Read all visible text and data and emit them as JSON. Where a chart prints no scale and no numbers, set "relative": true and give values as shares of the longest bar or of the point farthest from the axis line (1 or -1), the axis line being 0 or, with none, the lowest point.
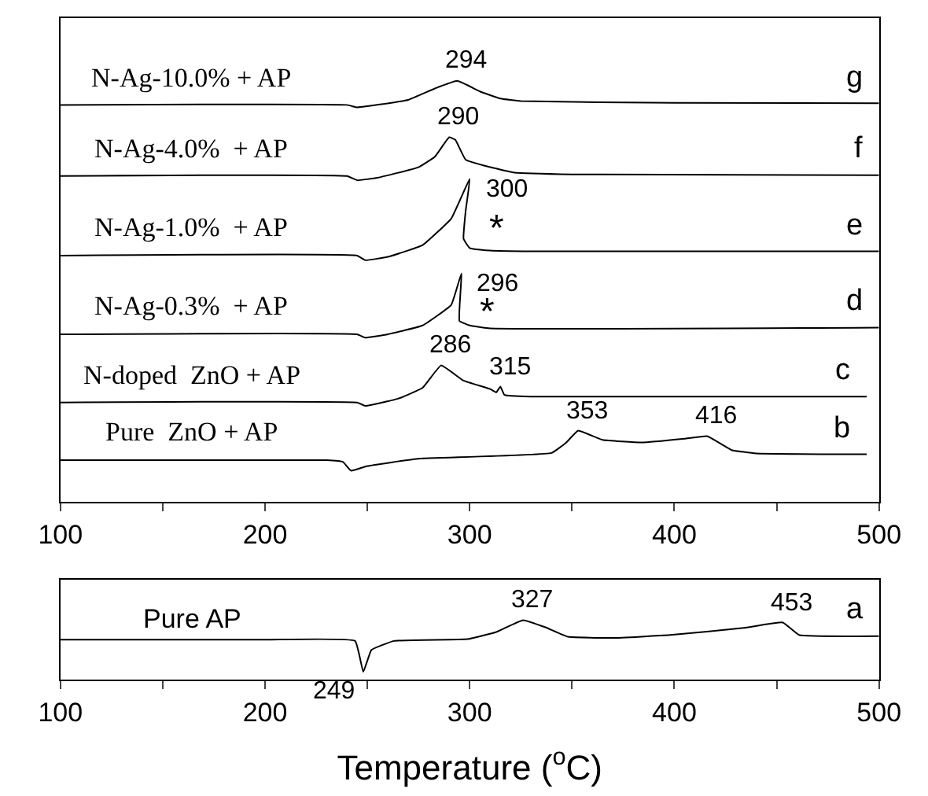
{
  "chart_data": [
    {
      "type": "line",
      "relative": true,
      "tick_labels": "x",
      "marker": "none",
      "line_style": "solid",
      "xlim": [
        100,
        500
      ],
      "xticks": [
        100,
        {
          "value": 150,
          "label": null
        },
        200,
        {
          "value": 250,
          "label": null
        },
        300,
        {
          "value": 350,
          "label": null
        },
        400,
        {
          "value": 450,
          "label": null
        },
        500
      ],
      "series": [
        {
          "name": "N-Ag-10.0% + AP",
          "color": "#000000",
          "x": [
            100,
            240,
            245,
            250,
            270,
            283,
            294,
            305,
            315,
            325,
            400,
            500
          ],
          "values": [
            0.943,
            0.943,
            0.937,
            0.94,
            0.955,
            0.982,
            1.0,
            0.975,
            0.958,
            0.952,
            0.948,
            0.947
          ]
        },
        {
          "name": "N-Ag-4.0%  + AP",
          "color": "#000000",
          "x": [
            100,
            240,
            245,
            255,
            275,
            283,
            290,
            293,
            298,
            310,
            322,
            350,
            500
          ],
          "values": [
            0.774,
            0.774,
            0.764,
            0.77,
            0.795,
            0.82,
            0.866,
            0.86,
            0.813,
            0.795,
            0.782,
            0.778,
            0.776
          ]
        },
        {
          "name": "N-Ag-1.0%  + AP",
          "color": "#000000",
          "x": [
            100,
            245,
            249,
            260,
            277,
            291,
            300,
            298,
            297,
            300,
            310,
            330,
            500
          ],
          "values": [
            0.585,
            0.585,
            0.574,
            0.582,
            0.61,
            0.673,
            0.767,
            0.69,
            0.625,
            0.603,
            0.597,
            0.595,
            0.595
          ]
        },
        {
          "name": "N-Ag-0.3%  + AP",
          "color": "#000000",
          "x": [
            100,
            245,
            249,
            260,
            277,
            291,
            296,
            295,
            300,
            310,
            500
          ],
          "values": [
            0.398,
            0.398,
            0.39,
            0.398,
            0.419,
            0.468,
            0.543,
            0.43,
            0.419,
            0.412,
            0.414
          ]
        },
        {
          "name": "N-doped  ZnO + AP",
          "color": "#000000",
          "x": [
            100,
            245,
            249,
            265,
            277,
            286,
            297,
            310,
            313,
            315,
            317,
            330,
            494
          ],
          "values": [
            0.236,
            0.236,
            0.228,
            0.245,
            0.271,
            0.324,
            0.288,
            0.268,
            0.26,
            0.274,
            0.254,
            0.25,
            0.25
          ]
        },
        {
          "name": "Pure  ZnO + AP",
          "color": "#000000",
          "x": [
            100,
            230,
            238,
            242,
            250,
            274,
            340,
            347,
            353,
            365,
            384,
            405,
            416,
            428,
            440,
            494
          ],
          "values": [
            0.099,
            0.099,
            0.095,
            0.074,
            0.085,
            0.102,
            0.116,
            0.14,
            0.169,
            0.147,
            0.141,
            0.15,
            0.156,
            0.123,
            0.115,
            0.113
          ]
        }
      ],
      "annotations": [
        {
          "text": "294",
          "x": 294,
          "y": 1.0
        },
        {
          "text": "290",
          "x": 290,
          "y": 0.866
        },
        {
          "text": "300",
          "x": 300,
          "y": 0.767
        },
        {
          "text": "296",
          "x": 296,
          "y": 0.543
        },
        {
          "text": "286",
          "x": 286,
          "y": 0.324
        },
        {
          "text": "315",
          "x": 315,
          "y": 0.274
        },
        {
          "text": "353",
          "x": 353,
          "y": 0.169
        },
        {
          "text": "416",
          "x": 416,
          "y": 0.156
        },
        "*",
        "*",
        {
          "text": "g",
          "x": 500,
          "y": 0.947
        },
        {
          "text": "f",
          "x": 500,
          "y": 0.776
        },
        {
          "text": "e",
          "x": 500,
          "y": 0.595
        },
        {
          "text": "d",
          "x": 500,
          "y": 0.414
        },
        {
          "text": "c",
          "x": 494,
          "y": 0.25
        },
        {
          "text": "b",
          "x": 494,
          "y": 0.113
        }
      ]
    },
    {
      "type": "line",
      "relative": true,
      "marker": "none",
      "line_style": "solid",
      "xlabel": "Temperature ($^{o}$C)",
      "xlim": [
        100,
        500
      ],
      "xticks": [
        100,
        {
          "value": 150,
          "label": null
        },
        200,
        {
          "value": 250,
          "label": null
        },
        300,
        {
          "value": 350,
          "label": null
        },
        400,
        {
          "value": 450,
          "label": null
        },
        500
      ],
      "series": [
        {
          "name": "Pure AP",
          "color": "#000000",
          "x": [
            100,
            200,
            244,
            248,
            252,
            263,
            299,
            313,
            326,
            337,
            348,
            370,
            398,
            434,
            453,
            461,
            500
          ],
          "values": [
            0.67,
            0.67,
            0.65,
            0.13,
            0.5,
            0.65,
            0.68,
            0.8,
            1.0,
            0.88,
            0.72,
            0.7,
            0.75,
            0.87,
            0.96,
            0.75,
            0.73
          ]
        }
      ],
      "annotations": [
        {
          "text": "249",
          "x": 248,
          "y": 0.13
        },
        {
          "text": "327",
          "x": 326,
          "y": 1.0
        },
        {
          "text": "453",
          "x": 453,
          "y": 0.96
        },
        {
          "text": "a",
          "x": 500,
          "y": 0.73
        }
      ]
    }
  ]
}
